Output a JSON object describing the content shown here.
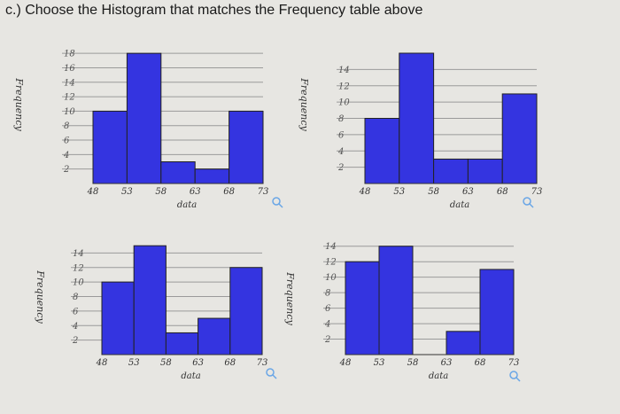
{
  "question": "c.) Choose the Histogram that matches the Frequency table above",
  "colors": {
    "bar": "#3434e0",
    "background": "#e7e6e2",
    "grid": "#9a9a9a"
  },
  "chart_data": [
    {
      "type": "bar",
      "bin_edges": [
        48,
        53,
        58,
        63,
        68,
        73
      ],
      "values": [
        10,
        18,
        3,
        2,
        10
      ],
      "yticks": [
        2,
        4,
        6,
        8,
        10,
        12,
        14,
        16,
        18
      ],
      "ylim": [
        0,
        19
      ],
      "xlabel": "data",
      "ylabel": "Frequency"
    },
    {
      "type": "bar",
      "bin_edges": [
        48,
        53,
        58,
        63,
        68,
        73
      ],
      "values": [
        8,
        16,
        3,
        3,
        11
      ],
      "yticks": [
        2,
        4,
        6,
        8,
        10,
        12,
        14
      ],
      "ylim": [
        0,
        16
      ],
      "xlabel": "data",
      "ylabel": "Frequency"
    },
    {
      "type": "bar",
      "bin_edges": [
        48,
        53,
        58,
        63,
        68,
        73
      ],
      "values": [
        10,
        15,
        3,
        5,
        12
      ],
      "yticks": [
        2,
        4,
        6,
        8,
        10,
        12,
        14
      ],
      "ylim": [
        0,
        16
      ],
      "xlabel": "data",
      "ylabel": "Frequency"
    },
    {
      "type": "bar",
      "bin_edges": [
        48,
        53,
        58,
        63,
        68,
        73
      ],
      "values": [
        12,
        14,
        0,
        3,
        11
      ],
      "yticks": [
        2,
        4,
        6,
        8,
        10,
        12,
        14
      ],
      "ylim": [
        0,
        15
      ],
      "xlabel": "data",
      "ylabel": "Frequency"
    }
  ]
}
